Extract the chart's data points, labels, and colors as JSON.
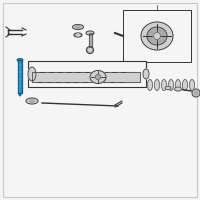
{
  "bg_color": "#f5f5f5",
  "border_color": "#c8c8c8",
  "bolt_color": "#2288bb",
  "bolt_highlight": "#44aadd",
  "bolt_dark": "#115577",
  "line_color": "#777777",
  "dark_line": "#333333",
  "part_gray": "#aaaaaa",
  "part_light": "#d0d0d0",
  "part_mid": "#888888",
  "part_dark": "#555555",
  "white": "#ffffff",
  "figsize": [
    2.0,
    2.0
  ],
  "dpi": 100
}
